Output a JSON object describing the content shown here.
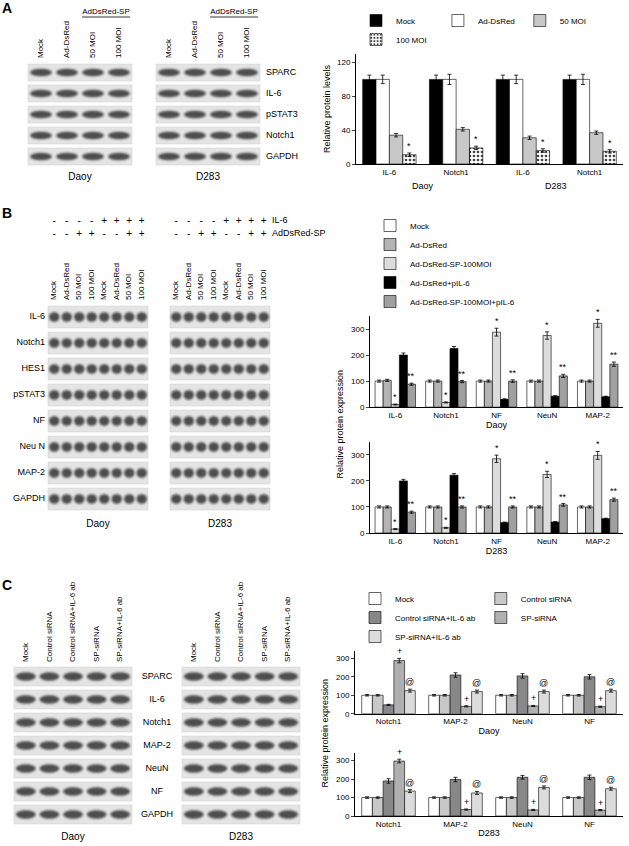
{
  "panels": [
    {
      "label": "A",
      "row_labels": [
        "SPARC",
        "IL-6",
        "pSTAT3",
        "Notch1",
        "GAPDH"
      ],
      "blots": [
        {
          "cell_line": "Daoy",
          "lanes": [
            "Mock",
            "Ad-DsRed",
            "50 MOI",
            "100 MOI"
          ],
          "lane_header": [
            null,
            null,
            "AdDsRed-SP",
            "AdDsRed-SP"
          ]
        },
        {
          "cell_line": "D283",
          "lanes": [
            "Mock",
            "Ad-DsRed",
            "50 MOI",
            "100 MOI"
          ],
          "lane_header": [
            null,
            null,
            "AdDsRed-SP",
            "AdDsRed-SP"
          ]
        }
      ]
    },
    {
      "label": "B",
      "treatment_labels": [
        "IL-6",
        "AdDsRed-SP"
      ],
      "row_labels": [
        "IL-6",
        "Notch1",
        "HES1",
        "pSTAT3",
        "NF",
        "Neu N",
        "MAP-2",
        "GAPDH"
      ],
      "blots": [
        {
          "cell_line": "Daoy",
          "lanes": [
            "Mock",
            "Ad-DsRed",
            "50 MOI",
            "100 MOI",
            "Mock",
            "Ad-DsRed",
            "50 MOI",
            "100 MOI"
          ],
          "treatments": [
            [
              "-",
              "-",
              "-",
              "-",
              "+",
              "+",
              "+",
              "+"
            ],
            [
              "-",
              "-",
              "+",
              "+",
              "-",
              "-",
              "+",
              "+"
            ]
          ]
        },
        {
          "cell_line": "D283",
          "lanes": [
            "Mock",
            "Ad-DsRed",
            "50 MOI",
            "100 MOI",
            "Mock",
            "Ad-DsRed",
            "50 MOI",
            "100 MOI"
          ],
          "treatments": [
            [
              "-",
              "-",
              "-",
              "-",
              "+",
              "+",
              "+",
              "+"
            ],
            [
              "-",
              "-",
              "+",
              "+",
              "-",
              "-",
              "+",
              "+"
            ]
          ]
        }
      ]
    },
    {
      "label": "C",
      "row_labels": [
        "SPARC",
        "IL-6",
        "Notch1",
        "MAP-2",
        "NeuN",
        "NF",
        "GAPDH"
      ],
      "blots": [
        {
          "cell_line": "Daoy",
          "lanes": [
            "Mock",
            "Control siRNA",
            "Control siRNA+IL-6 ab",
            "SP-siRNA",
            "SP-siRNA+IL-6 ab"
          ]
        },
        {
          "cell_line": "D283",
          "lanes": [
            "Mock",
            "Control siRNA",
            "Control siRNA+IL-6 ab",
            "SP-siRNA",
            "SP-siRNA+IL-6 ab"
          ]
        }
      ]
    }
  ],
  "chart_data": [
    {
      "type": "bar",
      "y_label": "Relative protein levels",
      "legend": "top",
      "grid": false,
      "categories": [
        "IL-6",
        "Notch1",
        "IL-6",
        "Notch1"
      ],
      "category_groups": [
        "Daoy",
        "Daoy",
        "D283",
        "D283"
      ],
      "ylim": [
        0,
        130
      ],
      "yticks": [
        0,
        40,
        80,
        120
      ],
      "series": [
        {
          "name": "Mock",
          "color": "#000000",
          "values": [
            100,
            100,
            100,
            100
          ],
          "errors": [
            5,
            5,
            5,
            5
          ]
        },
        {
          "name": "Ad-DsRed",
          "color": "#ffffff",
          "values": [
            100,
            100,
            100,
            100
          ],
          "errors": [
            5,
            6,
            5,
            6
          ]
        },
        {
          "name": "50 MOI",
          "color": "#c8c8c8",
          "values": [
            34,
            41,
            31,
            37
          ],
          "errors": [
            2,
            2,
            2,
            2
          ]
        },
        {
          "name": "100 MOI",
          "color": "#eeeeee",
          "marker": "dotted",
          "values": [
            11,
            19,
            16,
            15
          ],
          "errors": [
            2,
            2,
            2,
            2
          ],
          "symbols": [
            "*",
            "*",
            "*",
            "*"
          ]
        }
      ]
    },
    {
      "type": "bar",
      "y_label": "Relative protein expression",
      "x_label": "Daoy",
      "legend": "top",
      "grid": false,
      "categories": [
        "IL-6",
        "Notch1",
        "NF",
        "NeuN",
        "MAP-2"
      ],
      "ylim": [
        0,
        350
      ],
      "yticks": [
        0,
        100,
        200,
        300
      ],
      "series": [
        {
          "name": "Mock",
          "color": "#ffffff",
          "values": [
            100,
            100,
            100,
            100,
            100
          ],
          "errors": [
            4,
            4,
            4,
            4,
            4
          ]
        },
        {
          "name": "Ad-DsRed",
          "color": "#b4b4b4",
          "values": [
            103,
            100,
            100,
            100,
            100
          ],
          "errors": [
            4,
            4,
            4,
            4,
            4
          ]
        },
        {
          "name": "Ad-DsRed-SP-100MOI",
          "color": "#dcdcdc",
          "values": [
            10,
            18,
            288,
            275,
            322
          ],
          "errors": [
            2,
            2,
            15,
            14,
            15
          ],
          "symbols": [
            "*",
            "*",
            "*",
            "*",
            "*"
          ]
        },
        {
          "name": "Ad-DsRed+pIL-6",
          "color": "#000000",
          "values": [
            200,
            225,
            30,
            42,
            40
          ],
          "errors": [
            8,
            8,
            2,
            2,
            2
          ]
        },
        {
          "name": "Ad-DsRed-SP-100MOI+pIL-6",
          "color": "#a0a0a0",
          "values": [
            88,
            98,
            100,
            120,
            165
          ],
          "errors": [
            4,
            4,
            5,
            6,
            8
          ],
          "symbols": [
            "**",
            "**",
            "**",
            "**",
            "**"
          ]
        }
      ]
    },
    {
      "type": "bar",
      "x_label": "D283",
      "grid": false,
      "categories": [
        "IL-6",
        "Notch1",
        "NF",
        "NeuN",
        "MAP-2"
      ],
      "ylim": [
        0,
        350
      ],
      "yticks": [
        0,
        100,
        200,
        300
      ],
      "series": [
        {
          "name": "Mock",
          "color": "#ffffff",
          "values": [
            100,
            100,
            100,
            100,
            100
          ],
          "errors": [
            4,
            4,
            4,
            4,
            4
          ]
        },
        {
          "name": "Ad-DsRed",
          "color": "#b4b4b4",
          "values": [
            100,
            100,
            100,
            100,
            100
          ],
          "errors": [
            4,
            4,
            4,
            4,
            4
          ]
        },
        {
          "name": "Ad-DsRed-SP-100MOI",
          "color": "#dcdcdc",
          "values": [
            15,
            20,
            285,
            225,
            298
          ],
          "errors": [
            2,
            2,
            14,
            12,
            15
          ],
          "symbols": [
            "*",
            "*",
            "*",
            "*",
            "*"
          ]
        },
        {
          "name": "Ad-DsRed+pIL-6",
          "color": "#000000",
          "values": [
            200,
            222,
            40,
            42,
            55
          ],
          "errors": [
            6,
            6,
            2,
            2,
            2
          ]
        },
        {
          "name": "Ad-DsRed-SP-100MOI+pIL-6",
          "color": "#a0a0a0",
          "values": [
            80,
            100,
            100,
            108,
            128
          ],
          "errors": [
            4,
            4,
            4,
            5,
            6
          ],
          "symbols": [
            "**",
            "**",
            "**",
            "**",
            "**"
          ]
        }
      ]
    },
    {
      "type": "bar",
      "y_label": "Relative protein expression",
      "x_label": "Daoy",
      "legend": "top",
      "grid": false,
      "categories": [
        "Notch1",
        "MAP-2",
        "NeuN",
        "NF"
      ],
      "ylim": [
        0,
        340
      ],
      "yticks": [
        0,
        100,
        200,
        300
      ],
      "series": [
        {
          "name": "Mock",
          "color": "#ffffff",
          "values": [
            100,
            100,
            100,
            100
          ],
          "errors": [
            4,
            4,
            4,
            4
          ]
        },
        {
          "name": "Control siRNA",
          "color": "#c8c8c8",
          "values": [
            100,
            100,
            100,
            100
          ],
          "errors": [
            4,
            4,
            4,
            4
          ]
        },
        {
          "name": "Control siRNA+IL-6 ab",
          "color": "#888888",
          "values": [
            48,
            210,
            205,
            200
          ],
          "errors": [
            3,
            12,
            12,
            12
          ]
        },
        {
          "name": "SP-siRNA",
          "color": "#b0b0b0",
          "values": [
            288,
            40,
            42,
            38
          ],
          "errors": [
            12,
            3,
            3,
            3
          ],
          "symbols": [
            "+",
            "+",
            "+",
            "+"
          ]
        },
        {
          "name": "SP-siRNA+IL-6 ab",
          "color": "#dcdcdc",
          "values": [
            125,
            120,
            120,
            125
          ],
          "errors": [
            8,
            8,
            8,
            8
          ],
          "symbols": [
            "@",
            "@",
            "@",
            "@"
          ]
        }
      ]
    },
    {
      "type": "bar",
      "x_label": "D283",
      "grid": false,
      "categories": [
        "Notch1",
        "MAP-2",
        "NeuN",
        "NF"
      ],
      "ylim": [
        0,
        340
      ],
      "yticks": [
        0,
        100,
        200,
        300
      ],
      "series": [
        {
          "name": "Mock",
          "color": "#ffffff",
          "values": [
            100,
            100,
            100,
            100
          ],
          "errors": [
            4,
            4,
            4,
            4
          ]
        },
        {
          "name": "Control siRNA",
          "color": "#c8c8c8",
          "values": [
            100,
            100,
            100,
            100
          ],
          "errors": [
            4,
            4,
            4,
            4
          ]
        },
        {
          "name": "Control siRNA+IL-6 ab",
          "color": "#888888",
          "values": [
            190,
            198,
            210,
            210
          ],
          "errors": [
            12,
            12,
            10,
            12
          ]
        },
        {
          "name": "SP-siRNA",
          "color": "#b0b0b0",
          "values": [
            298,
            35,
            33,
            32
          ],
          "errors": [
            10,
            3,
            3,
            3
          ],
          "symbols": [
            "+",
            "+",
            "+",
            "+"
          ]
        },
        {
          "name": "SP-siRNA+IL-6 ab",
          "color": "#dcdcdc",
          "values": [
            135,
            125,
            155,
            148
          ],
          "errors": [
            8,
            8,
            8,
            8
          ],
          "symbols": [
            "@",
            "@",
            "@",
            "@"
          ]
        }
      ]
    }
  ]
}
